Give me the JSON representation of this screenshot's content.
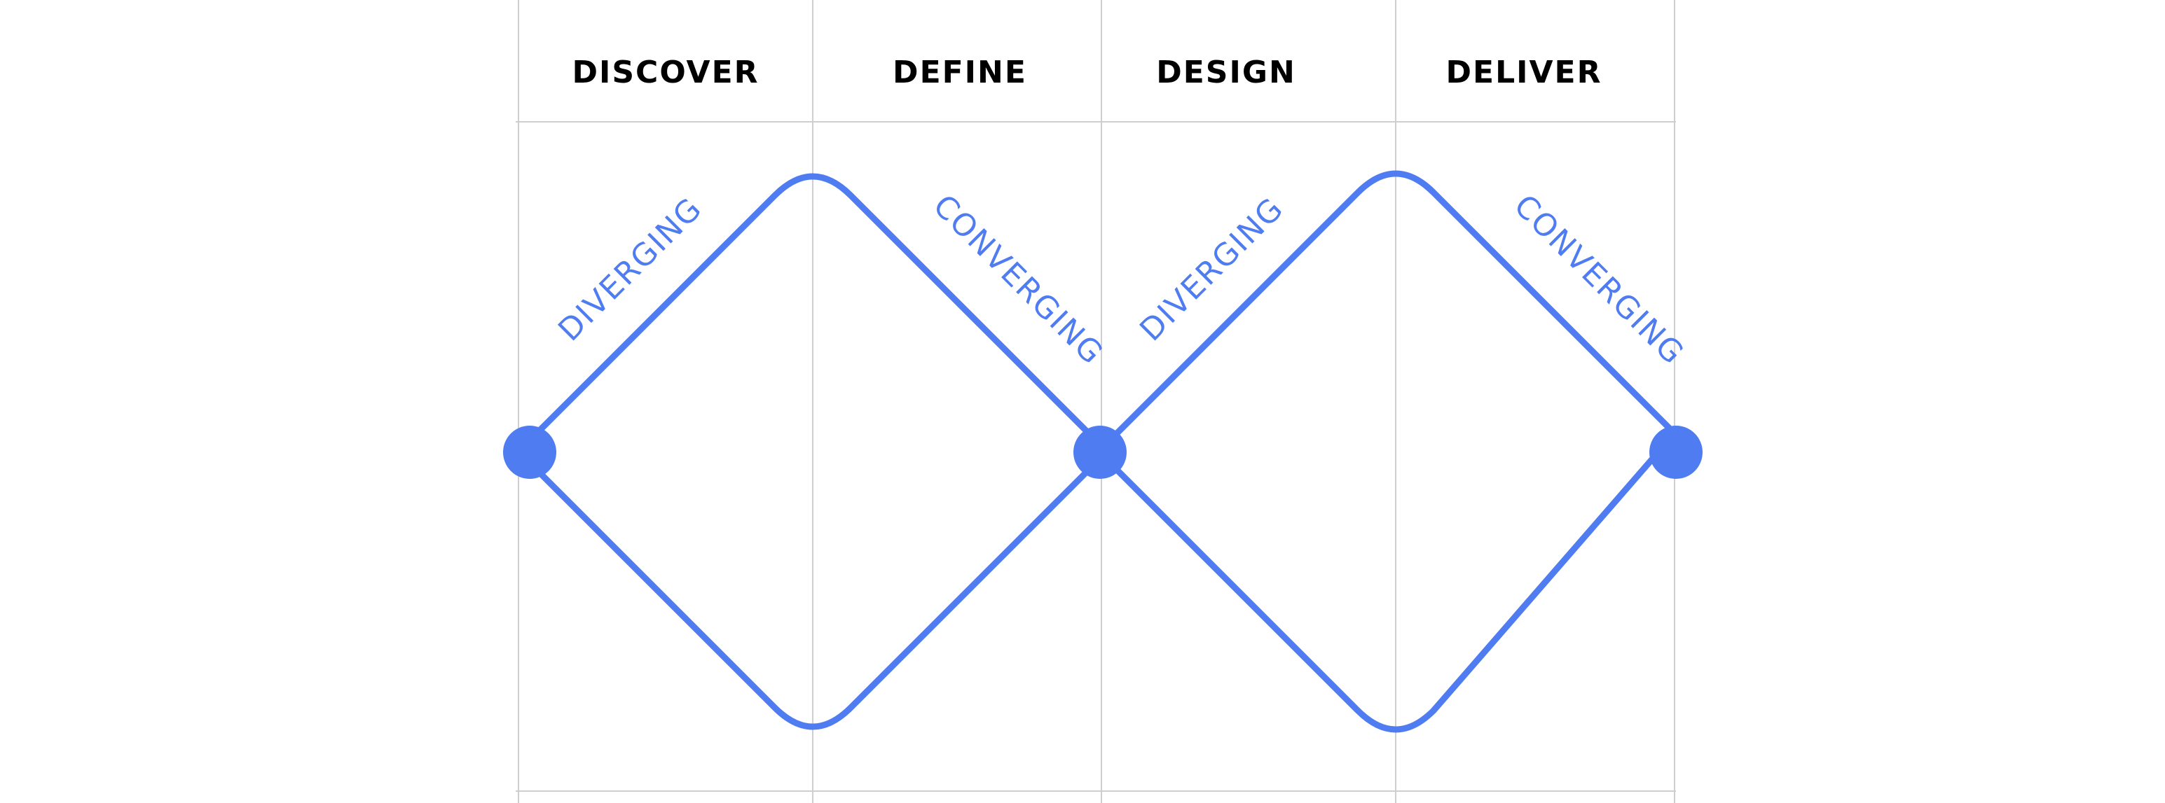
{
  "colors": {
    "accent": "#4f7cf0",
    "grid": "#cfcfcf",
    "text": "#000000",
    "background": "#ffffff"
  },
  "phases": {
    "discover": "DISCOVER",
    "define": "DEFINE",
    "design": "DESIGN",
    "deliver": "DELIVER"
  },
  "diamonds": {
    "first": {
      "diverging": "DIVERGING",
      "converging": "CONVERGING"
    },
    "second": {
      "diverging": "DIVERGING",
      "converging": "CONVERGING"
    }
  }
}
